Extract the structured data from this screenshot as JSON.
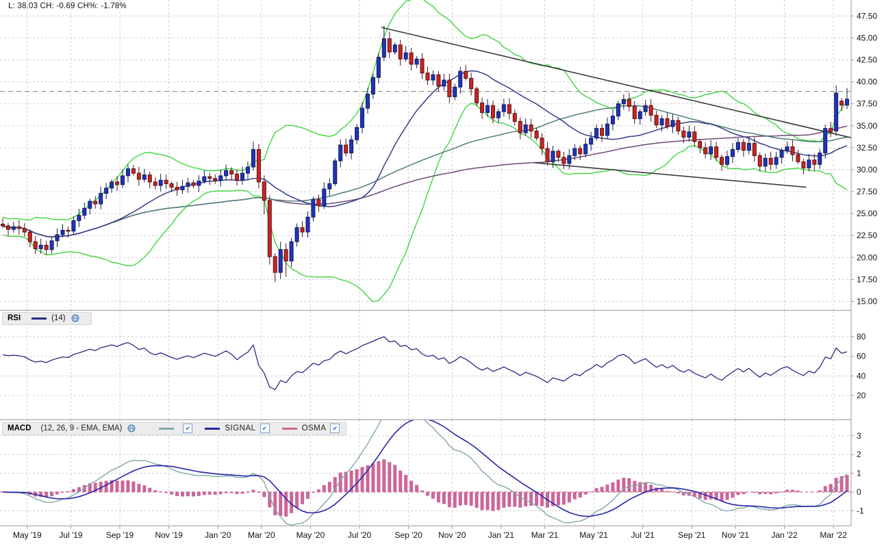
{
  "header": {
    "price_label": "L: 38.03 CH: -0.69 CH%: -1.78%"
  },
  "icons": {
    "check": "✔",
    "settings": "globe-icon"
  },
  "panels": {
    "price": {
      "y_ticks": [
        "47.50",
        "45.00",
        "42.50",
        "40.00",
        "37.50",
        "35.00",
        "32.50",
        "30.00",
        "27.50",
        "25.00",
        "22.50",
        "20.00",
        "17.50",
        "15.00"
      ],
      "dashed_level_price": 38.9
    },
    "rsi": {
      "title": "RSI",
      "params": "(14)",
      "y_ticks": [
        "80",
        "60",
        "40",
        "20"
      ]
    },
    "macd": {
      "title": "MACD",
      "params": "(12, 26, 9 - EMA, EMA)",
      "y_ticks": [
        "3",
        "2",
        "1",
        "0",
        "-1"
      ],
      "legend": [
        {
          "label": "",
          "series": "macd-line"
        },
        {
          "label": "SIGNAL",
          "series": "signal-line"
        },
        {
          "label": "OSMA",
          "series": "osma-histogram"
        }
      ]
    }
  },
  "x_axis": {
    "labels": [
      "May '19",
      "Jul '19",
      "Sep '19",
      "Nov '19",
      "Jan '20",
      "Mar '20",
      "May '20",
      "Jul '20",
      "Sep '20",
      "Nov '20",
      "Jan '21",
      "Mar '21",
      "May '21",
      "Jul '21",
      "Sep '21",
      "Nov '21",
      "Jan '22",
      "Mar '22"
    ]
  },
  "colors": {
    "up_fill": "#2233bb",
    "up_stroke": "#101a55",
    "down_fill": "#cc2424",
    "down_stroke": "#551111",
    "bollinger": "#3ed63e",
    "sma20": "#323c86",
    "sma50": "#4f7d7d",
    "sma100": "#6e4a78",
    "rsi_line": "#2a2a80",
    "macd_line": "#7fa8a8",
    "signal_line": "#2525a8",
    "osma": "#cc6699",
    "trendline": "#3a3a3a",
    "grid": "#cfcfcf",
    "panel_border": "#9a9a9a",
    "axis_text": "#111111",
    "dashed_level": "#858585"
  },
  "chart_data": {
    "type": "candlestick",
    "frequency": "weekly",
    "start_date": "2019-04-01",
    "weeks": 156,
    "title": "Price with Bollinger Bands (20,2), SMA20, SMA50, SMA100; RSI(14); MACD(12,26,9) with SIGNAL and OSMA",
    "ylim": [
      15.0,
      47.5
    ],
    "first_open": 23.8,
    "closes": [
      23.6,
      23.2,
      23.5,
      23.3,
      22.9,
      21.8,
      21.0,
      21.4,
      20.9,
      21.9,
      22.6,
      23.1,
      23.0,
      24.2,
      24.8,
      25.6,
      26.4,
      26.1,
      27.3,
      27.9,
      28.6,
      28.3,
      29.3,
      30.1,
      29.6,
      28.9,
      29.4,
      28.6,
      28.2,
      28.8,
      28.4,
      28.0,
      27.7,
      28.1,
      28.5,
      28.2,
      28.7,
      29.2,
      29.0,
      28.8,
      29.3,
      29.9,
      29.5,
      28.8,
      29.6,
      30.3,
      32.3,
      28.6,
      26.5,
      20.1,
      18.3,
      20.9,
      19.6,
      21.8,
      23.4,
      22.9,
      24.6,
      26.6,
      25.9,
      27.8,
      28.4,
      31.0,
      32.8,
      31.9,
      33.4,
      34.8,
      37.0,
      38.6,
      40.5,
      42.8,
      44.9,
      43.4,
      44.2,
      42.6,
      43.3,
      42.0,
      42.6,
      41.0,
      40.2,
      40.8,
      39.5,
      40.2,
      38.3,
      39.4,
      41.2,
      40.4,
      39.2,
      37.6,
      36.5,
      37.3,
      35.9,
      36.6,
      37.4,
      36.4,
      35.5,
      34.2,
      35.1,
      34.4,
      33.6,
      32.4,
      30.9,
      32.1,
      31.4,
      30.7,
      31.6,
      32.4,
      31.8,
      32.9,
      33.6,
      34.7,
      33.9,
      35.2,
      36.1,
      37.5,
      38.0,
      37.2,
      35.8,
      36.6,
      37.3,
      36.2,
      35.1,
      35.8,
      34.9,
      35.6,
      34.4,
      33.7,
      34.3,
      33.2,
      32.5,
      31.8,
      32.6,
      31.4,
      30.6,
      31.5,
      32.3,
      33.1,
      32.2,
      33.0,
      31.6,
      30.4,
      31.3,
      30.6,
      31.4,
      32.2,
      32.6,
      31.7,
      30.9,
      30.2,
      31.1,
      30.6,
      31.9,
      34.7,
      34.3,
      38.72,
      37.35,
      38.03
    ],
    "ohlc_overrides": {
      "8": {
        "l": 20.3
      },
      "46": {
        "h": 33.2
      },
      "48": {
        "l": 24.9
      },
      "49": {
        "l": 19.2
      },
      "50": {
        "l": 17.2
      },
      "51": {
        "h": 21.8
      },
      "52": {
        "l": 17.8
      },
      "70": {
        "h": 46.4
      },
      "71": {
        "h": 45.7
      },
      "153": {
        "o": 34.4,
        "h": 39.6
      },
      "154": {
        "o": 37.8
      },
      "155": {
        "h": 39.3,
        "l": 36.9
      }
    },
    "indicators": {
      "bollinger": {
        "period": 20,
        "stdev": 2
      },
      "sma": [
        20,
        50,
        100
      ],
      "rsi": {
        "period": 14,
        "ylim": [
          0,
          100
        ]
      },
      "macd": {
        "fast": 12,
        "slow": 26,
        "signal": 9,
        "ylim": [
          -1.8,
          3.6
        ]
      }
    },
    "trendlines": [
      {
        "from_week": 69.5,
        "from_price": 46.2,
        "to_week": 156.0,
        "to_price": 33.6
      },
      {
        "from_week": 97.5,
        "from_price": 30.8,
        "to_week": 147.5,
        "to_price": 28.0
      }
    ],
    "dashed_level_price": 38.9
  }
}
